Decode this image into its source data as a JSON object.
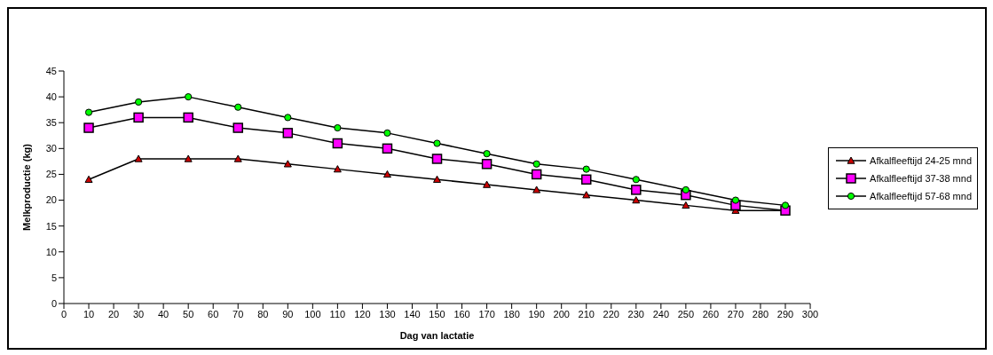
{
  "chart_data": {
    "type": "line",
    "xlabel": "Dag van lactatie",
    "ylabel": "Melkproductie (kg)",
    "x": [
      10,
      30,
      50,
      70,
      90,
      110,
      130,
      150,
      170,
      190,
      210,
      230,
      250,
      270,
      290
    ],
    "series": [
      {
        "name": "Afkalfleeftijd 24-25 mnd",
        "color": "#cc0000",
        "marker": "triangle",
        "values": [
          24,
          28,
          28,
          28,
          27,
          26,
          25,
          24,
          23,
          22,
          21,
          20,
          19,
          18,
          18
        ]
      },
      {
        "name": "Afkalfleeftijd 37-38 mnd",
        "color": "#ff00ff",
        "marker": "square",
        "values": [
          34,
          36,
          36,
          34,
          33,
          31,
          30,
          28,
          27,
          25,
          24,
          22,
          21,
          19,
          18
        ]
      },
      {
        "name": "Afkalfleeftijd 57-68 mnd",
        "color": "#00ff00",
        "marker": "circle",
        "values": [
          37,
          39,
          40,
          38,
          36,
          34,
          33,
          31,
          29,
          27,
          26,
          24,
          22,
          20,
          19
        ]
      }
    ],
    "xlim": [
      0,
      300
    ],
    "xticks": [
      0,
      10,
      20,
      30,
      40,
      50,
      60,
      70,
      80,
      90,
      100,
      110,
      120,
      130,
      140,
      150,
      160,
      170,
      180,
      190,
      200,
      210,
      220,
      230,
      240,
      250,
      260,
      270,
      280,
      290,
      300
    ],
    "ylim": [
      0,
      45
    ],
    "yticks": [
      0,
      5,
      10,
      15,
      20,
      25,
      30,
      35,
      40,
      45
    ],
    "grid": false,
    "legend": "right",
    "line_style": "solid"
  }
}
